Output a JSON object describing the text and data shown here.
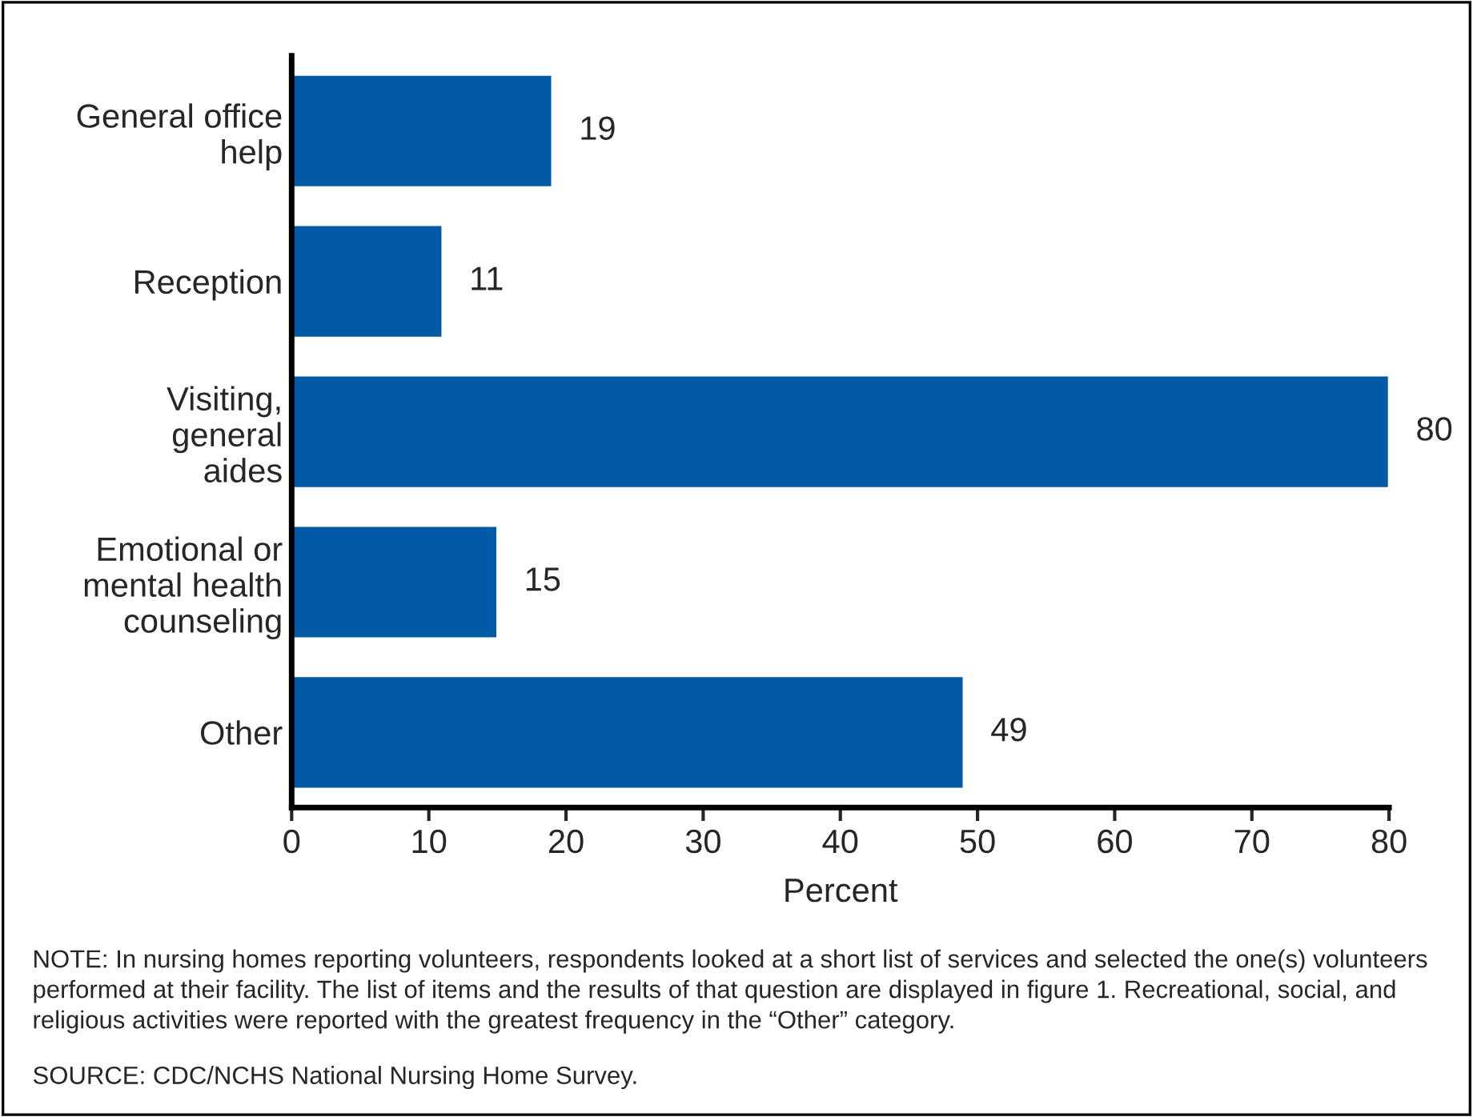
{
  "chart_data": {
    "type": "bar",
    "orientation": "horizontal",
    "categories": [
      "General office\nhelp",
      "Reception",
      "Visiting,\ngeneral\naides",
      "Emotional or\nmental health\ncounseling",
      "Other"
    ],
    "values": [
      19,
      11,
      80,
      15,
      49
    ],
    "color": "#005aa6",
    "xlabel": "Percent",
    "xlim": [
      0,
      80
    ],
    "xticks": [
      0,
      10,
      20,
      30,
      40,
      50,
      60,
      70,
      80
    ],
    "data_labels": true,
    "grid": false,
    "legend": false,
    "annotations": [
      "NOTE: In nursing homes reporting volunteers, respondents looked at a short list of services and selected the one(s) volunteers performed at their facility. The list of items and the results of that question are displayed in figure 1. Recreational, social, and religious activities were reported with the greatest frequency in the “Other” category.",
      "SOURCE: CDC/NCHS National Nursing Home Survey."
    ]
  }
}
